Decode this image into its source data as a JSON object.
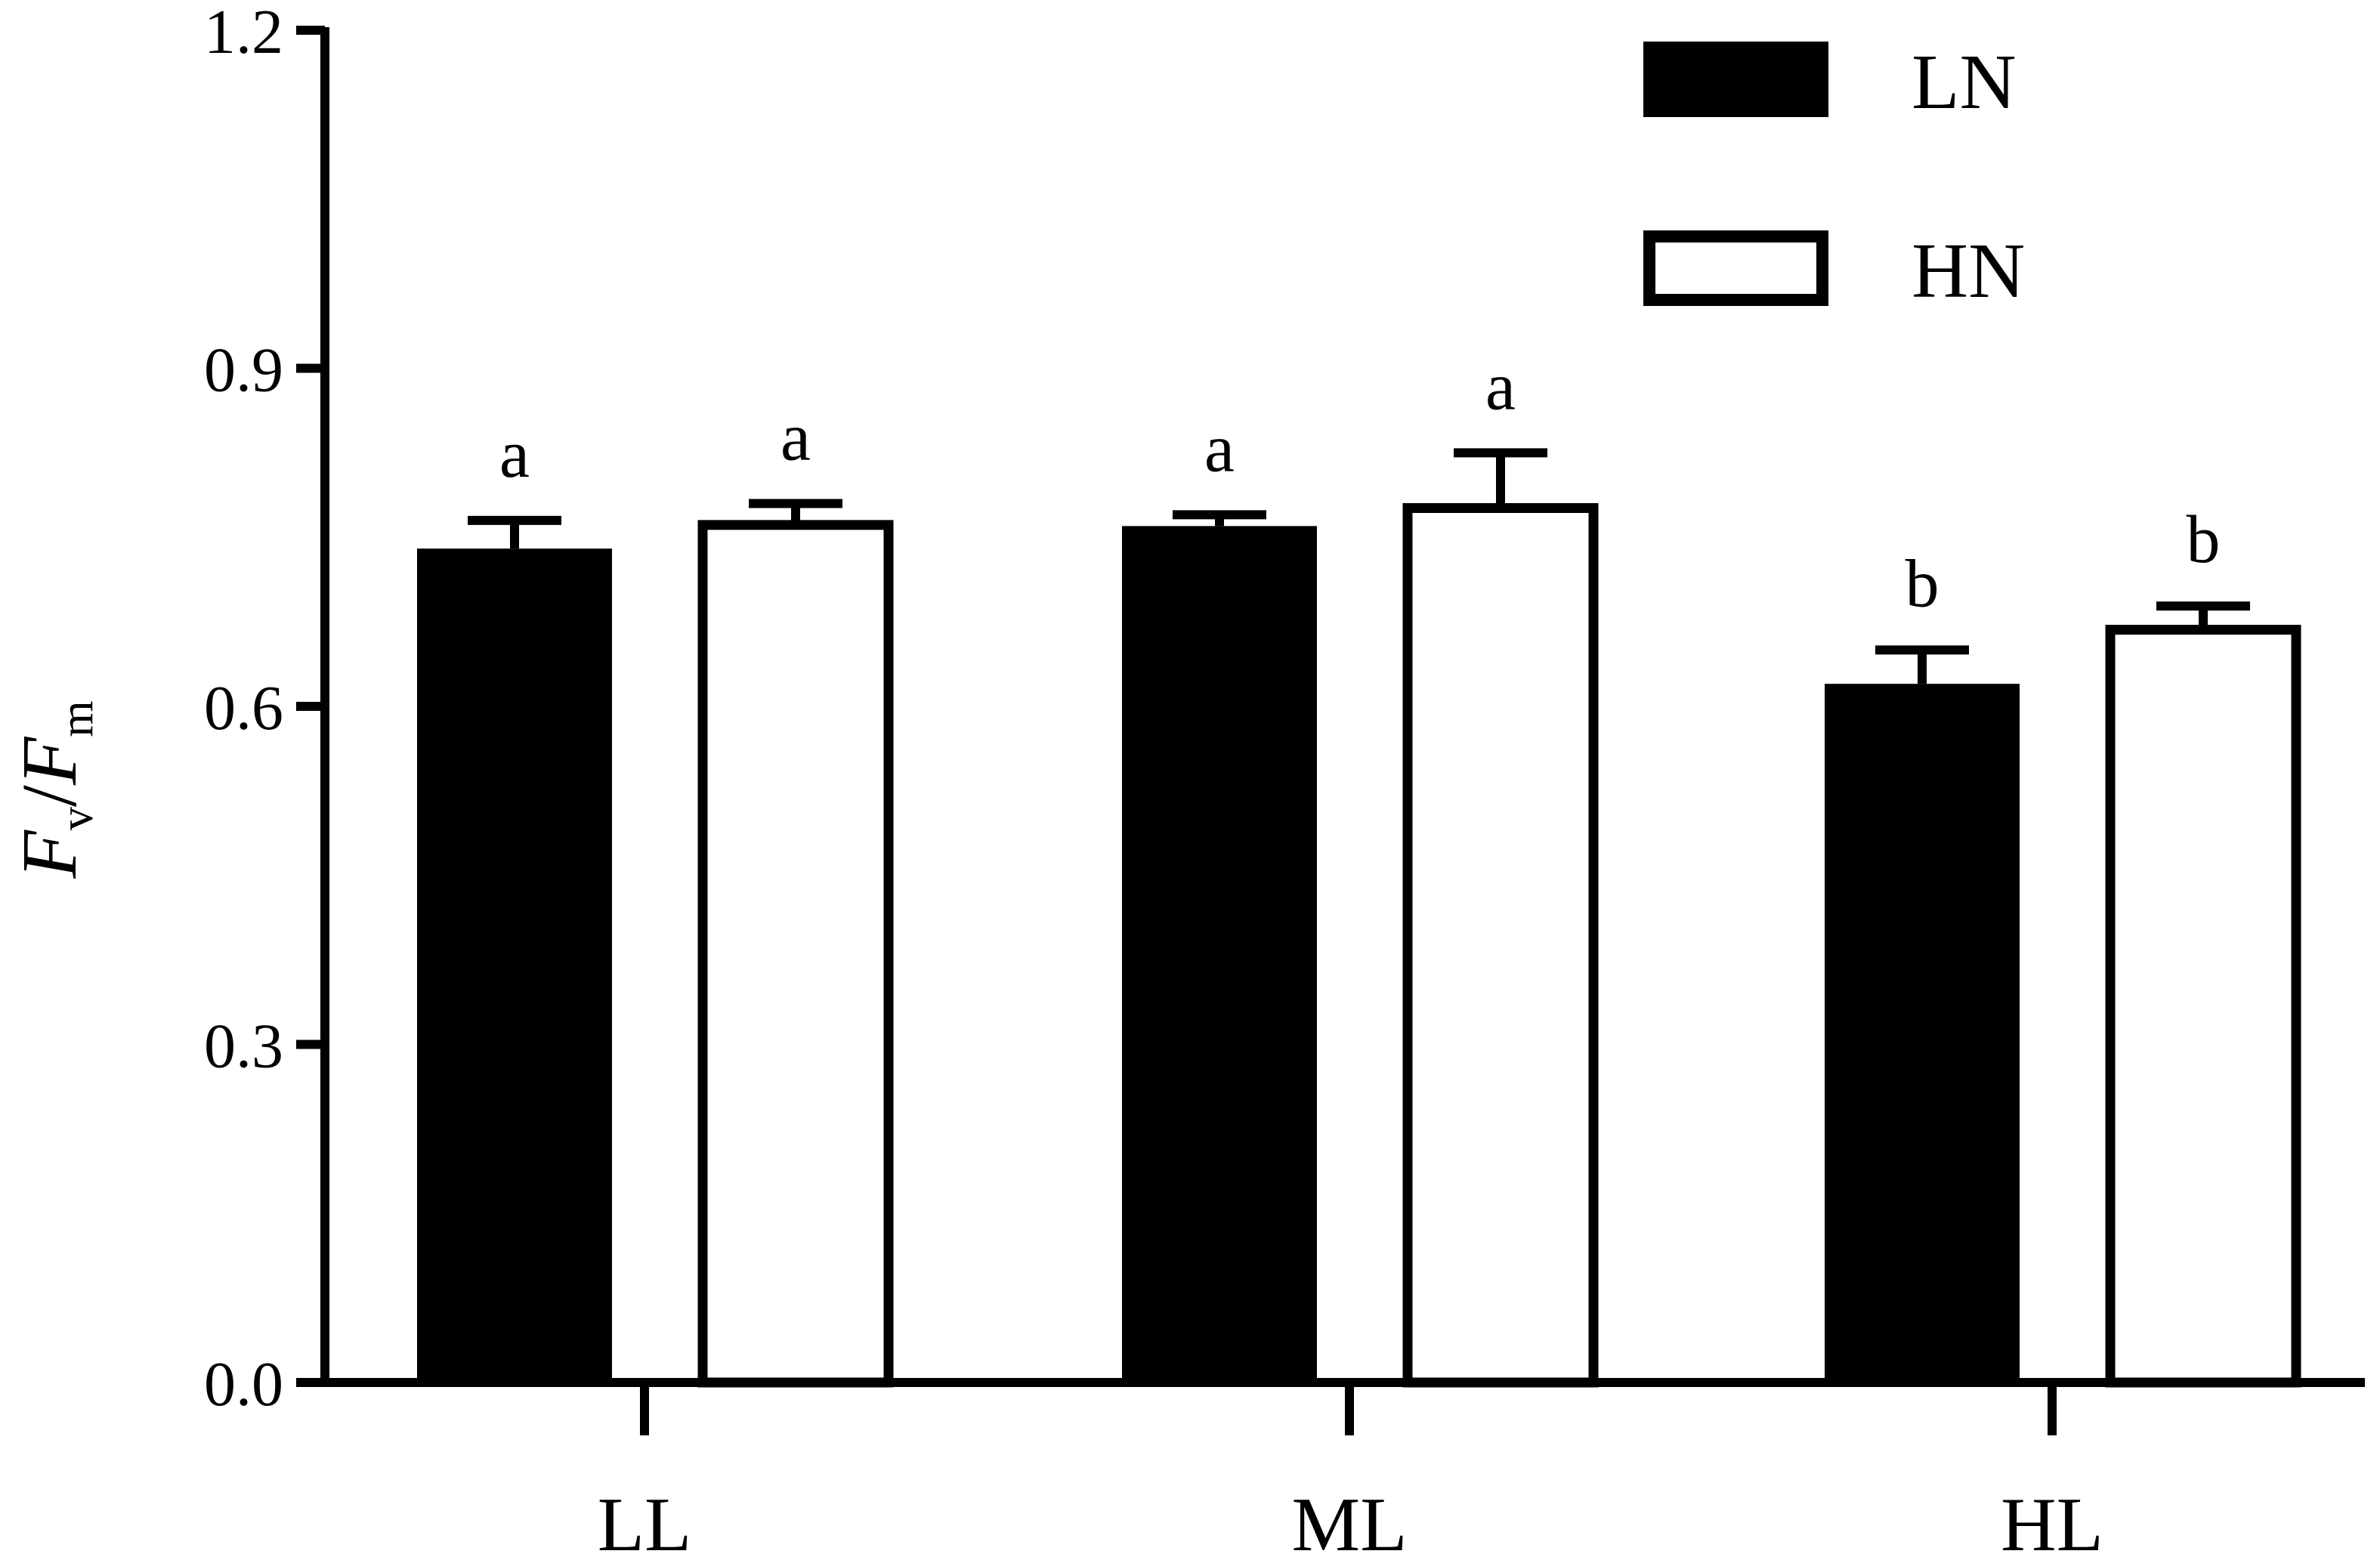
{
  "chart_data": {
    "type": "bar",
    "categories": [
      "LL",
      "ML",
      "HL"
    ],
    "series": [
      {
        "name": "LN",
        "fill": "#000000",
        "values": [
          0.74,
          0.76,
          0.62
        ],
        "errors": [
          0.025,
          0.01,
          0.03
        ],
        "letters": [
          "a",
          "a",
          "b"
        ]
      },
      {
        "name": "HN",
        "fill": "#ffffff",
        "values": [
          0.765,
          0.78,
          0.672
        ],
        "errors": [
          0.015,
          0.045,
          0.017
        ],
        "letters": [
          "a",
          "a",
          "b"
        ]
      }
    ],
    "ylim": [
      0,
      1.2
    ],
    "yticks": [
      "0.0",
      "0.3",
      "0.6",
      "0.9",
      "1.2"
    ],
    "ylabel": {
      "F1": "F",
      "sub1": "v",
      "slash": "/",
      "F2": "F",
      "sub2": "m"
    },
    "xlabel": "",
    "title": "",
    "legend_position": "top-right",
    "grid": false
  }
}
